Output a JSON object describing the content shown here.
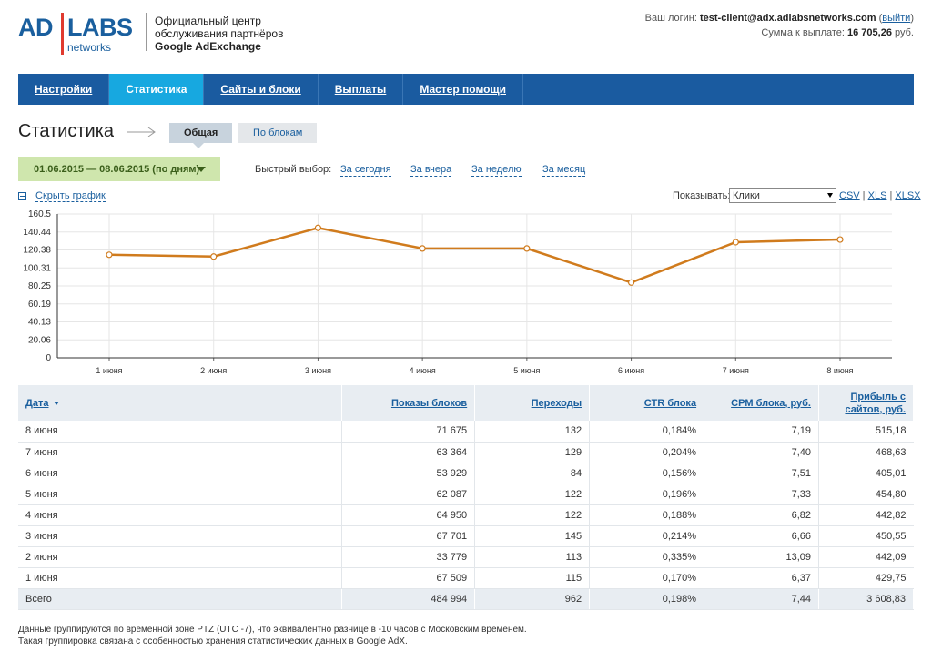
{
  "header": {
    "logo": {
      "ad": "AD",
      "labs": "LABS",
      "networks": "networks"
    },
    "desc_line1": "Официальный центр",
    "desc_line2": "обслуживания партнёров",
    "desc_line3": "Google AdExchange",
    "login_label": "Ваш логин:",
    "login_value": "test-client@adx.adlabsnetworks.com",
    "logout": "выйти",
    "payout_label": "Сумма к выплате:",
    "payout_value": "16 705,26",
    "payout_unit": "руб."
  },
  "nav": {
    "items": [
      {
        "label": "Настройки"
      },
      {
        "label": "Статистика"
      },
      {
        "label": "Сайты и блоки"
      },
      {
        "label": "Выплаты"
      },
      {
        "label": "Мастер помощи"
      }
    ]
  },
  "page": {
    "title": "Статистика",
    "tab_general": "Общая",
    "tab_blocks": "По блокам",
    "date_range": "01.06.2015 — 08.06.2015 (по дням)",
    "quick_label": "Быстрый выбор:",
    "quick_today": "За сегодня",
    "quick_yesterday": "За вчера",
    "quick_week": "За неделю",
    "quick_month": "За месяц",
    "hide_graph": "Скрыть график",
    "show_label": "Показывать:",
    "show_value": "Клики",
    "export_csv": "CSV",
    "export_xls": "XLS",
    "export_xlsx": "XLSX"
  },
  "colors": {
    "line": "#d07b1d",
    "nav": "#1a5ba0",
    "nav_active": "#17a8e0"
  },
  "chart_data": {
    "type": "line",
    "x": [
      "1 июня",
      "2 июня",
      "3 июня",
      "4 июня",
      "5 июня",
      "6 июня",
      "7 июня",
      "8 июня"
    ],
    "series": [
      {
        "values": [
          115,
          113,
          145,
          122,
          122,
          84,
          129,
          132
        ]
      }
    ],
    "yticks": [
      "0",
      "20.06",
      "40.13",
      "60.19",
      "80.25",
      "100.31",
      "120.38",
      "140.44",
      "160.5"
    ],
    "ylim": [
      0,
      160.5
    ],
    "grid": true
  },
  "table": {
    "headers": [
      "Дата",
      "Показы блоков",
      "Переходы",
      "CTR блока",
      "CPM блока, руб.",
      "Прибыль с сайтов, руб."
    ],
    "rows": [
      [
        "8 июня",
        "71 675",
        "132",
        "0,184%",
        "7,19",
        "515,18"
      ],
      [
        "7 июня",
        "63 364",
        "129",
        "0,204%",
        "7,40",
        "468,63"
      ],
      [
        "6 июня",
        "53 929",
        "84",
        "0,156%",
        "7,51",
        "405,01"
      ],
      [
        "5 июня",
        "62 087",
        "122",
        "0,196%",
        "7,33",
        "454,80"
      ],
      [
        "4 июня",
        "64 950",
        "122",
        "0,188%",
        "6,82",
        "442,82"
      ],
      [
        "3 июня",
        "67 701",
        "145",
        "0,214%",
        "6,66",
        "450,55"
      ],
      [
        "2 июня",
        "33 779",
        "113",
        "0,335%",
        "13,09",
        "442,09"
      ],
      [
        "1 июня",
        "67 509",
        "115",
        "0,170%",
        "6,37",
        "429,75"
      ]
    ],
    "total": [
      "Всего",
      "484 994",
      "962",
      "0,198%",
      "7,44",
      "3 608,83"
    ]
  },
  "footnote": {
    "line1": "Данные группируются по временной зоне PTZ (UTC -7), что эквивалентно разнице в -10 часов с Московским временем.",
    "line2": "Такая группировка связана с особенностью хранения статистических данных в Google AdX."
  }
}
